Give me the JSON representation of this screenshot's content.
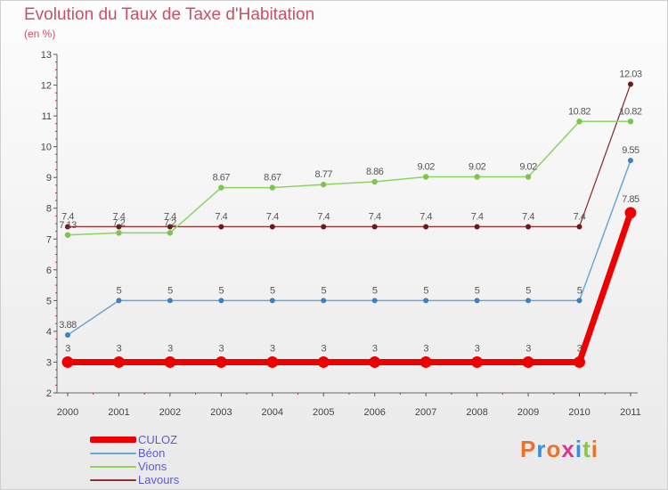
{
  "chart_data": {
    "type": "line",
    "title": "Evolution du Taux de Taxe d'Habitation",
    "subtitle": "(en %)",
    "x": [
      "2000",
      "2001",
      "2002",
      "2003",
      "2004",
      "2005",
      "2006",
      "2007",
      "2008",
      "2009",
      "2010",
      "2011"
    ],
    "yticks": [
      "2",
      "3",
      "4",
      "5",
      "6",
      "7",
      "8",
      "9",
      "10",
      "11",
      "12",
      "13"
    ],
    "ylim": [
      2,
      13
    ],
    "grid": false,
    "legend_position": "bottom-left",
    "series": [
      {
        "name": "Lavours",
        "color": "#8b3535",
        "point_color": "#6b1a1a",
        "width": 1.3,
        "point_r": 3,
        "values": [
          7.4,
          7.4,
          7.4,
          7.4,
          7.4,
          7.4,
          7.4,
          7.4,
          7.4,
          7.4,
          7.4,
          12.03
        ],
        "labels": [
          "7.4",
          "7.4",
          "7.4",
          "7.4",
          "7.4",
          "7.4",
          "7.4",
          "7.4",
          "7.4",
          "7.4",
          "7.4",
          "12.03"
        ]
      },
      {
        "name": "Vions",
        "color": "#8cd462",
        "point_color": "#7cc552",
        "width": 1.5,
        "point_r": 3.2,
        "values": [
          7.13,
          7.2,
          7.2,
          8.67,
          8.67,
          8.77,
          8.86,
          9.02,
          9.02,
          9.02,
          10.82,
          10.82
        ],
        "labels": [
          "7.13",
          "7.2",
          "7.2",
          "8.67",
          "8.67",
          "8.77",
          "8.86",
          "9.02",
          "9.02",
          "9.02",
          "10.82",
          "10.82"
        ]
      },
      {
        "name": "Béon",
        "color": "#6fa6d4",
        "point_color": "#3c80c2",
        "width": 1.5,
        "point_r": 3,
        "values": [
          3.88,
          5,
          5,
          5,
          5,
          5,
          5,
          5,
          5,
          5,
          5,
          9.55
        ],
        "labels": [
          "3.88",
          "5",
          "5",
          "5",
          "5",
          "5",
          "5",
          "5",
          "5",
          "5",
          "5",
          "9.55"
        ]
      },
      {
        "name": "CULOZ",
        "color": "#ee0000",
        "point_color": "#ee0000",
        "width": 7,
        "point_r": 6.5,
        "values": [
          3,
          3,
          3,
          3,
          3,
          3,
          3,
          3,
          3,
          3,
          3,
          7.85
        ],
        "labels": [
          "3",
          "3",
          "3",
          "3",
          "3",
          "3",
          "3",
          "3",
          "3",
          "3",
          "3",
          "7.85"
        ]
      }
    ]
  },
  "legend": [
    {
      "name": "CULOZ",
      "color": "#ee0000",
      "thickness": 7
    },
    {
      "name": "Béon",
      "color": "#6fa6d4",
      "thickness": 2
    },
    {
      "name": "Vions",
      "color": "#8cd462",
      "thickness": 2
    },
    {
      "name": "Lavours",
      "color": "#8b3535",
      "thickness": 2
    }
  ],
  "logo": {
    "text": "Proxiti",
    "colors": [
      "#e8732a",
      "#3a8fd6",
      "#e8732a",
      "#d43c8a",
      "#3a8fd6",
      "#8cc63f",
      "#e8732a"
    ]
  }
}
